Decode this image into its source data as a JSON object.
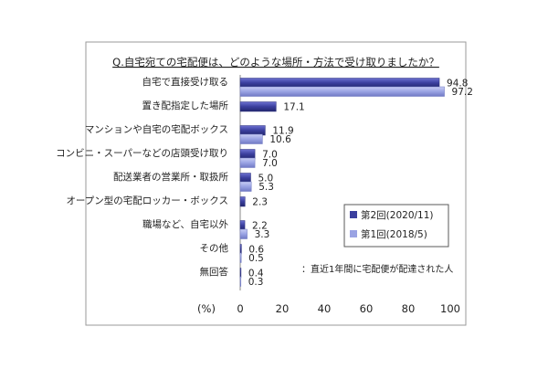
{
  "chart_data": {
    "type": "bar",
    "orientation": "horizontal",
    "title": "Q.自宅宛ての宅配便は、どのような場所・方法で受け取りましたか？",
    "categories": [
      "自宅で直接受け取る",
      "置き配指定した場所",
      "マンションや自宅の宅配ボックス",
      "コンビニ・スーパーなどの店頭受け取り",
      "配送業者の営業所・取扱所",
      "オープン型の宅配ロッカー・ボックス",
      "職場など、自宅以外",
      "その他",
      "無回答"
    ],
    "series": [
      {
        "name": "第2回(2020/11)",
        "values": [
          94.8,
          17.1,
          11.9,
          7.0,
          5.0,
          2.3,
          2.2,
          0.6,
          0.4
        ],
        "color": "#3b3f9e"
      },
      {
        "name": "第1回(2018/5)",
        "values": [
          97.2,
          null,
          10.6,
          7.0,
          5.3,
          null,
          3.3,
          0.5,
          0.3
        ],
        "color": "#9aa3e3"
      }
    ],
    "data_labels": [
      [
        "94.8",
        "17.1",
        "11.9",
        "7.0",
        "5.0",
        "2.3",
        "2.2",
        "0.6",
        "0.4"
      ],
      [
        "97.2",
        "",
        "10.6",
        "7.0",
        "5.3",
        "",
        "3.3",
        "0.5",
        "0.3"
      ]
    ],
    "xlim": [
      0,
      100
    ],
    "xticks": [
      0,
      20,
      40,
      60,
      80,
      100
    ],
    "xlabel": "(%)",
    "legend_position": "bottom-right",
    "note": "：直近1年間に宅配便が配達された人"
  }
}
